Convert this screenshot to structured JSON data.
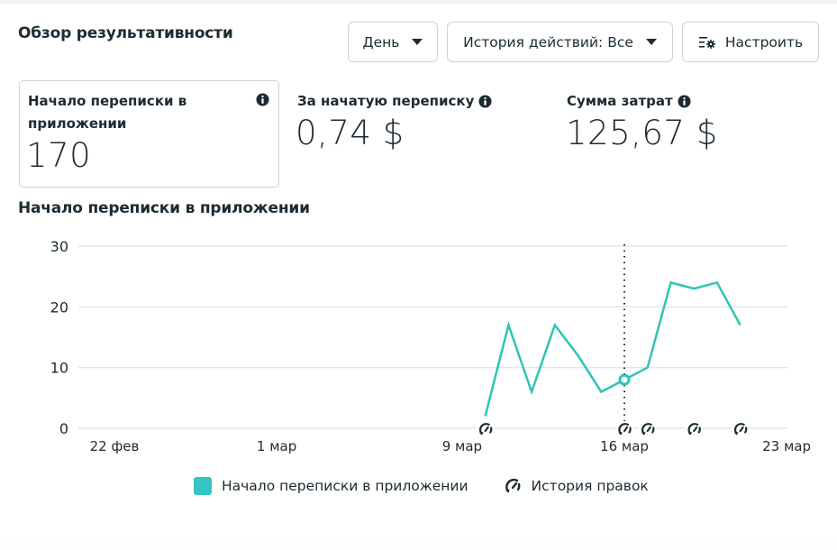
{
  "header": {
    "title": "Обзор результативности",
    "buttons": {
      "period": "День",
      "history": "История действий: Все",
      "customize": "Настроить"
    }
  },
  "metrics": [
    {
      "label": "Начало переписки в приложении",
      "value": "170",
      "icon": "info-icon"
    },
    {
      "label": "За начатую переписку",
      "value": "0,74 $",
      "icon": "info-icon"
    },
    {
      "label": "Сумма затрат",
      "value": "125,67 $",
      "icon": "info-icon"
    }
  ],
  "chart_title": "Начало переписки в приложении",
  "legend": {
    "series_label": "Начало переписки в приложении",
    "history_label": "История правок"
  },
  "colors": {
    "series": "#2ec4b6",
    "text": "#1c2b33",
    "grid": "#e4e6eb",
    "border": "#cbd2d9"
  },
  "chart_data": {
    "type": "line",
    "title": "Начало переписки в приложении",
    "xlabel": "",
    "ylabel": "",
    "ylim": [
      0,
      30
    ],
    "y_ticks": [
      0,
      10,
      20,
      30
    ],
    "x_tick_labels": [
      "22 фев",
      "1 мар",
      "9 мар",
      "16 мар",
      "23 мар"
    ],
    "grid": true,
    "legend_position": "bottom",
    "x": [
      "10 мар",
      "11 мар",
      "12 мар",
      "13 мар",
      "14 мар",
      "15 мар",
      "16 мар",
      "17 мар",
      "18 мар",
      "19 мар",
      "20 мар",
      "21 мар"
    ],
    "series": [
      {
        "name": "Начало переписки в приложении",
        "values": [
          2,
          17,
          6,
          17,
          12,
          6,
          8,
          10,
          24,
          23,
          24,
          17
        ]
      }
    ],
    "highlighted_point": {
      "x": "16 мар",
      "value": 8
    },
    "edit_history_markers": [
      "10 мар",
      "16 мар",
      "17 мар",
      "19 мар",
      "21 мар"
    ]
  }
}
